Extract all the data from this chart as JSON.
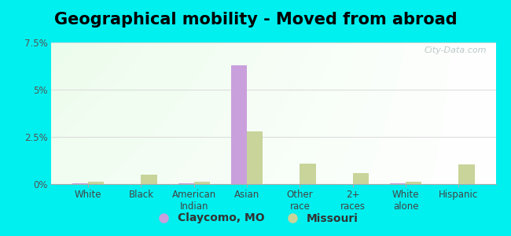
{
  "title": "Geographical mobility - Moved from abroad",
  "categories": [
    "White",
    "Black",
    "American\nIndian",
    "Asian",
    "Other\nrace",
    "2+\nraces",
    "White\nalone",
    "Hispanic"
  ],
  "claycomo_values": [
    0.05,
    0.0,
    0.05,
    6.3,
    0.0,
    0.0,
    0.05,
    0.0
  ],
  "missouri_values": [
    0.12,
    0.5,
    0.12,
    2.8,
    1.1,
    0.6,
    0.12,
    1.05
  ],
  "claycomo_color": "#c9a0dc",
  "missouri_color": "#c8d49a",
  "background_color": "#00efef",
  "ylim": [
    0,
    7.5
  ],
  "yticks": [
    0,
    2.5,
    5.0,
    7.5
  ],
  "ytick_labels": [
    "0%",
    "2.5%",
    "5%",
    "7.5%"
  ],
  "bar_width": 0.3,
  "legend_claycomo": "Claycomo, MO",
  "legend_missouri": "Missouri",
  "title_fontsize": 15,
  "tick_fontsize": 8.5,
  "legend_fontsize": 10
}
